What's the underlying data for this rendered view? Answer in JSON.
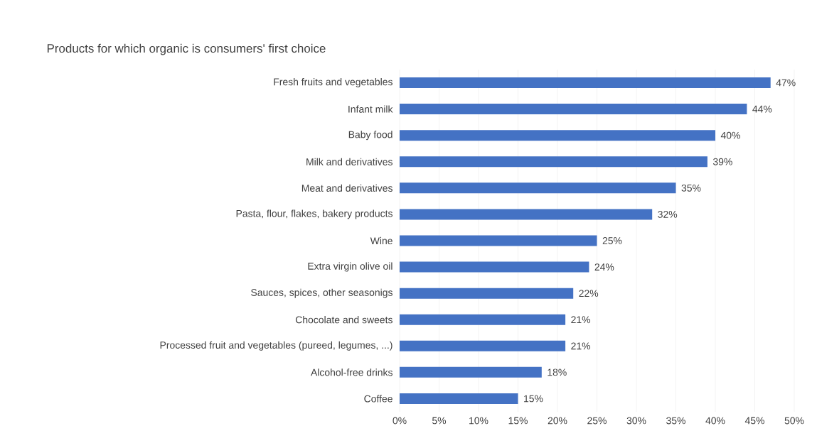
{
  "chart_data": {
    "type": "bar",
    "orientation": "horizontal",
    "title": "Products for which organic is consumers' first choice",
    "categories": [
      "Fresh fruits and vegetables",
      "Infant milk",
      "Baby food",
      "Milk and derivatives",
      "Meat and derivatives",
      "Pasta, flour, flakes, bakery products",
      "Wine",
      "Extra virgin olive oil",
      "Sauces, spices, other seasonigs",
      "Chocolate and sweets",
      "Processed fruit and vegetables (pureed, legumes, ...)",
      "Alcohol-free drinks",
      "Coffee"
    ],
    "values": [
      47,
      44,
      40,
      39,
      35,
      32,
      25,
      24,
      22,
      21,
      21,
      18,
      15
    ],
    "value_labels": [
      "47%",
      "44%",
      "40%",
      "39%",
      "35%",
      "32%",
      "25%",
      "24%",
      "22%",
      "21%",
      "21%",
      "18%",
      "15%"
    ],
    "color": "#4472c4",
    "xlim": [
      0,
      50
    ],
    "xticks": [
      {
        "value": 0,
        "label": "0%"
      },
      {
        "value": 5,
        "label": "5%"
      },
      {
        "value": 10,
        "label": "10%"
      },
      {
        "value": 15,
        "label": "15%"
      },
      {
        "value": 20,
        "label": "20%"
      },
      {
        "value": 25,
        "label": "25%"
      },
      {
        "value": 30,
        "label": "30%"
      },
      {
        "value": 35,
        "label": "35%"
      },
      {
        "value": 40,
        "label": "40%"
      },
      {
        "value": 45,
        "label": "45%"
      },
      {
        "value": 50,
        "label": "50%"
      }
    ],
    "grid": "x"
  }
}
